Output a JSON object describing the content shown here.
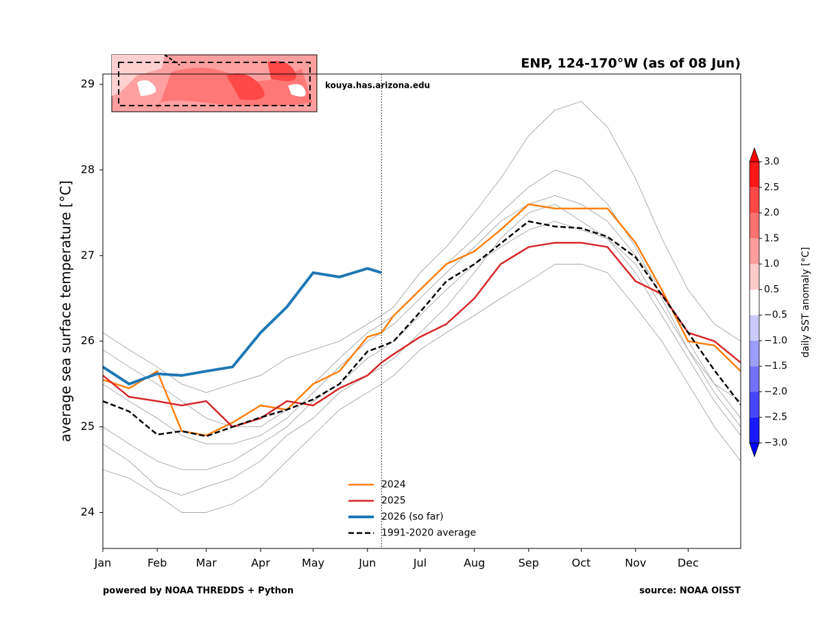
{
  "chart_data": {
    "type": "line",
    "title": "ENP, 124-170°W (as of 08 Jun)",
    "ylabel": "average sea surface temperature [°C]",
    "watermark": "kouya.has.arizona.edu",
    "footer_left": "powered by NOAA THREDDS + Python",
    "footer_right": "source: NOAA OISST",
    "x": [
      1,
      16,
      32,
      46,
      60,
      75,
      91,
      106,
      121,
      136,
      152,
      160,
      167,
      182,
      197,
      213,
      228,
      244,
      259,
      274,
      289,
      305,
      320,
      335,
      350,
      365
    ],
    "xlim": [
      1,
      365
    ],
    "xticks": [
      {
        "value": 1,
        "label": "Jan"
      },
      {
        "value": 32,
        "label": "Feb"
      },
      {
        "value": 60,
        "label": "Mar"
      },
      {
        "value": 91,
        "label": "Apr"
      },
      {
        "value": 121,
        "label": "May"
      },
      {
        "value": 152,
        "label": "Jun"
      },
      {
        "value": 182,
        "label": "Jul"
      },
      {
        "value": 213,
        "label": "Aug"
      },
      {
        "value": 244,
        "label": "Sep"
      },
      {
        "value": 274,
        "label": "Oct"
      },
      {
        "value": 305,
        "label": "Nov"
      },
      {
        "value": 335,
        "label": "Dec"
      }
    ],
    "ylim": [
      23.58,
      29.12
    ],
    "yticks": [
      24,
      25,
      26,
      27,
      28,
      29
    ],
    "marker_x": 160,
    "legend": "lower center",
    "series": [
      {
        "color": "#999999",
        "linewidth": 0.8,
        "values": [
          26.1,
          25.9,
          25.7,
          25.5,
          25.4,
          25.5,
          25.6,
          25.8,
          25.9,
          26.0,
          26.2,
          26.3,
          26.4,
          26.8,
          27.1,
          27.5,
          27.9,
          28.4,
          28.7,
          28.8,
          28.5,
          27.9,
          27.2,
          26.6,
          26.2,
          26.0
        ]
      },
      {
        "color": "#999999",
        "linewidth": 0.8,
        "values": [
          24.5,
          24.4,
          24.2,
          24.0,
          24.0,
          24.1,
          24.3,
          24.6,
          24.9,
          25.2,
          25.4,
          25.5,
          25.6,
          25.9,
          26.1,
          26.3,
          26.5,
          26.7,
          26.9,
          26.9,
          26.8,
          26.4,
          26.0,
          25.5,
          25.0,
          24.6
        ]
      },
      {
        "color": "#999999",
        "linewidth": 0.8,
        "values": [
          25.0,
          24.8,
          24.6,
          24.5,
          24.5,
          24.6,
          24.8,
          25.0,
          25.3,
          25.5,
          25.8,
          25.9,
          26.0,
          26.3,
          26.6,
          26.9,
          27.1,
          27.3,
          27.4,
          27.3,
          27.2,
          26.8,
          26.3,
          25.8,
          25.3,
          24.9
        ]
      },
      {
        "color": "#999999",
        "linewidth": 0.8,
        "values": [
          25.5,
          25.3,
          25.1,
          24.9,
          24.8,
          24.8,
          24.9,
          25.1,
          25.4,
          25.7,
          26.0,
          26.1,
          26.2,
          26.5,
          26.8,
          27.1,
          27.4,
          27.6,
          27.7,
          27.6,
          27.4,
          27.0,
          26.6,
          26.0,
          25.5,
          25.1
        ]
      },
      {
        "color": "#999999",
        "linewidth": 0.8,
        "values": [
          24.8,
          24.6,
          24.3,
          24.2,
          24.3,
          24.4,
          24.6,
          24.9,
          25.1,
          25.4,
          25.6,
          25.7,
          25.8,
          26.1,
          26.4,
          26.8,
          27.2,
          27.5,
          27.6,
          27.4,
          27.2,
          26.9,
          26.4,
          25.9,
          25.4,
          25.0
        ]
      },
      {
        "color": "#999999",
        "linewidth": 0.8,
        "values": [
          25.9,
          25.7,
          25.5,
          25.3,
          25.1,
          25.0,
          25.0,
          25.2,
          25.5,
          25.8,
          26.1,
          26.2,
          26.3,
          26.6,
          26.9,
          27.2,
          27.5,
          27.8,
          28.0,
          27.9,
          27.6,
          27.1,
          26.5,
          25.9,
          25.5,
          25.3
        ]
      },
      {
        "name": "2024",
        "color": "#ff7f0e",
        "linewidth": 2.5,
        "values": [
          25.55,
          25.45,
          25.65,
          24.95,
          24.9,
          25.05,
          25.25,
          25.2,
          25.5,
          25.65,
          26.05,
          26.1,
          26.3,
          26.6,
          26.9,
          27.05,
          27.3,
          27.6,
          27.55,
          27.55,
          27.55,
          27.15,
          26.6,
          26.0,
          25.95,
          25.65
        ]
      },
      {
        "name": "2025",
        "color": "#d62728",
        "linewidth": 2.5,
        "values": [
          25.6,
          25.35,
          25.3,
          25.25,
          25.3,
          25.0,
          25.1,
          25.3,
          25.25,
          25.45,
          25.6,
          25.75,
          25.85,
          26.05,
          26.2,
          26.5,
          26.9,
          27.1,
          27.15,
          27.15,
          27.1,
          26.7,
          26.55,
          26.1,
          26.0,
          25.75
        ]
      },
      {
        "name": "2026 (so far)",
        "color": "#1f77b4",
        "linewidth": 4,
        "values": [
          25.7,
          25.5,
          25.62,
          25.6,
          25.65,
          25.7,
          26.1,
          26.4,
          26.8,
          26.75,
          26.85,
          26.8,
          null,
          null,
          null,
          null,
          null,
          null,
          null,
          null,
          null,
          null,
          null,
          null,
          null,
          null
        ]
      },
      {
        "name": "1991-2020 average",
        "color": "#000000",
        "linewidth": 2.5,
        "dashed": true,
        "values": [
          25.3,
          25.18,
          24.91,
          24.95,
          24.89,
          25.0,
          25.11,
          25.2,
          25.32,
          25.5,
          25.88,
          25.94,
          26.0,
          26.34,
          26.7,
          26.9,
          27.14,
          27.4,
          27.34,
          27.32,
          27.22,
          26.98,
          26.54,
          26.1,
          25.66,
          25.26
        ]
      }
    ],
    "colorbar": {
      "label": "daily SST anomaly [°C]",
      "ticks": [
        {
          "value": -3,
          "label": "−3.0"
        },
        {
          "value": -2.5,
          "label": "−2.5"
        },
        {
          "value": -2,
          "label": "−2.0"
        },
        {
          "value": -1.5,
          "label": "−1.5"
        },
        {
          "value": -1,
          "label": "−1.0"
        },
        {
          "value": -0.5,
          "label": "−0.5"
        },
        0.5,
        {
          "value": 1,
          "label": "1.0"
        },
        1.5,
        {
          "value": 2,
          "label": "2.0"
        },
        2.5,
        {
          "value": 3,
          "label": "3.0"
        }
      ],
      "colors": [
        "#1a1aff",
        "#4747ff",
        "#7272ff",
        "#9e9eff",
        "#cacaff",
        "#ffffff",
        "#ffcaca",
        "#ff9e9e",
        "#ff7272",
        "#ff4747",
        "#ff1a1a"
      ],
      "under": "#0000ff",
      "over": "#ff0000"
    }
  }
}
